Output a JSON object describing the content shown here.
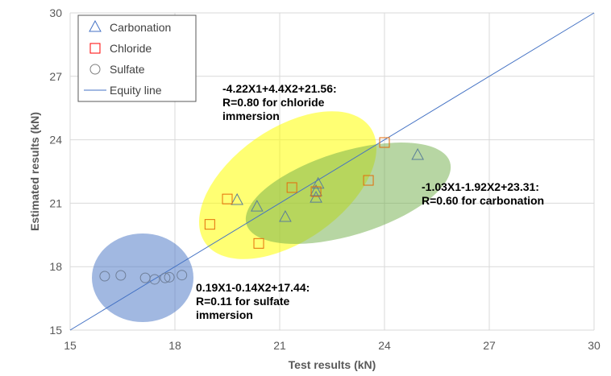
{
  "chart_data": {
    "type": "scatter",
    "xlabel": "Test results (kN)",
    "ylabel": "Estimated results (kN)",
    "xlim": [
      15,
      30
    ],
    "ylim": [
      15,
      30
    ],
    "xticks": [
      15,
      18,
      21,
      24,
      27,
      30
    ],
    "yticks": [
      15,
      18,
      21,
      24,
      27,
      30
    ],
    "grid": true,
    "legend_position": "top-left",
    "series": [
      {
        "name": "Carbonation",
        "marker": "triangle",
        "color": "#4472c4",
        "points": [
          [
            19.78,
            21.13
          ],
          [
            20.35,
            20.82
          ],
          [
            21.16,
            20.33
          ],
          [
            22.1,
            21.9
          ],
          [
            22.04,
            21.55
          ],
          [
            22.04,
            21.24
          ],
          [
            24.95,
            23.26
          ]
        ]
      },
      {
        "name": "Chloride",
        "marker": "square",
        "color": "#ff0000",
        "points": [
          [
            19.5,
            21.2
          ],
          [
            19.0,
            20.0
          ],
          [
            20.4,
            19.1
          ],
          [
            21.35,
            21.74
          ],
          [
            22.04,
            21.55
          ],
          [
            23.54,
            22.08
          ],
          [
            24.0,
            23.87
          ]
        ]
      },
      {
        "name": "Sulfate",
        "marker": "circle",
        "color": "#7f7f7f",
        "points": [
          [
            15.99,
            17.55
          ],
          [
            16.45,
            17.59
          ],
          [
            17.15,
            17.47
          ],
          [
            17.42,
            17.4
          ],
          [
            17.72,
            17.47
          ],
          [
            17.84,
            17.5
          ],
          [
            18.2,
            17.6
          ]
        ]
      },
      {
        "name": "Equity line",
        "marker": "line",
        "color": "#4472c4",
        "points": [
          [
            15,
            15
          ],
          [
            30,
            30
          ]
        ]
      }
    ],
    "annotations": [
      {
        "lines": [
          "-4.22X1+4.4X2+21.56:",
          "R=0.80 for chloride",
          "immersion"
        ]
      },
      {
        "lines": [
          "-1.03X1-1.92X2+23.31:",
          "R=0.60 for carbonation"
        ]
      },
      {
        "lines": [
          "0.19X1-0.14X2+17.44:",
          "R=0.11 for sulfate",
          "immersion"
        ]
      }
    ]
  }
}
